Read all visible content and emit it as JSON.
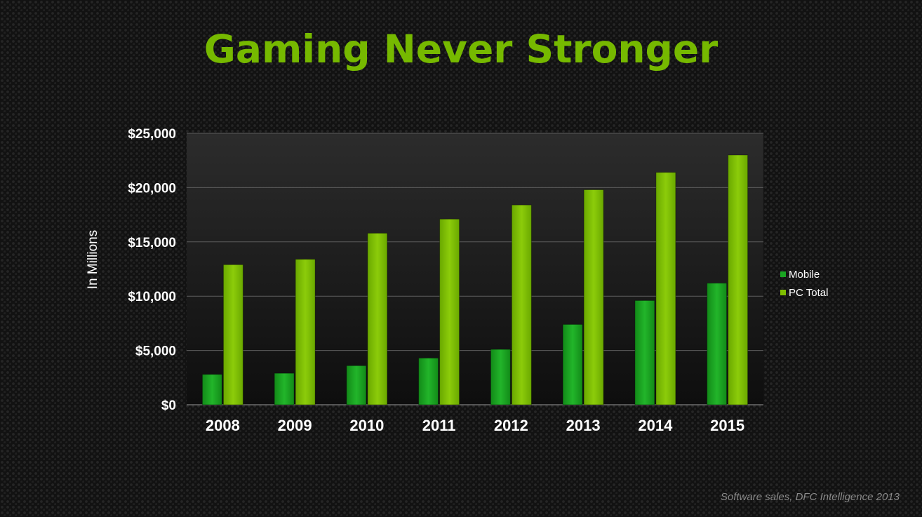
{
  "title": "Gaming Never Stronger",
  "source": "Software sales, DFC Intelligence 2013",
  "chart_data": {
    "type": "bar",
    "categories": [
      "2008",
      "2009",
      "2010",
      "2011",
      "2012",
      "2013",
      "2014",
      "2015"
    ],
    "series": [
      {
        "name": "Mobile",
        "color": "#1aa522",
        "values": [
          2800,
          2900,
          3600,
          4300,
          5100,
          7400,
          9600,
          11200
        ]
      },
      {
        "name": "PC Total",
        "color": "#7fbf00",
        "values": [
          12900,
          13400,
          15800,
          17100,
          18400,
          19800,
          21400,
          23000
        ]
      }
    ],
    "ylabel": "In Millions",
    "ylim": [
      0,
      25000
    ],
    "yticks": [
      "$0",
      "$5,000",
      "$10,000",
      "$15,000",
      "$20,000",
      "$25,000"
    ],
    "grid": true,
    "legend_position": "right"
  }
}
